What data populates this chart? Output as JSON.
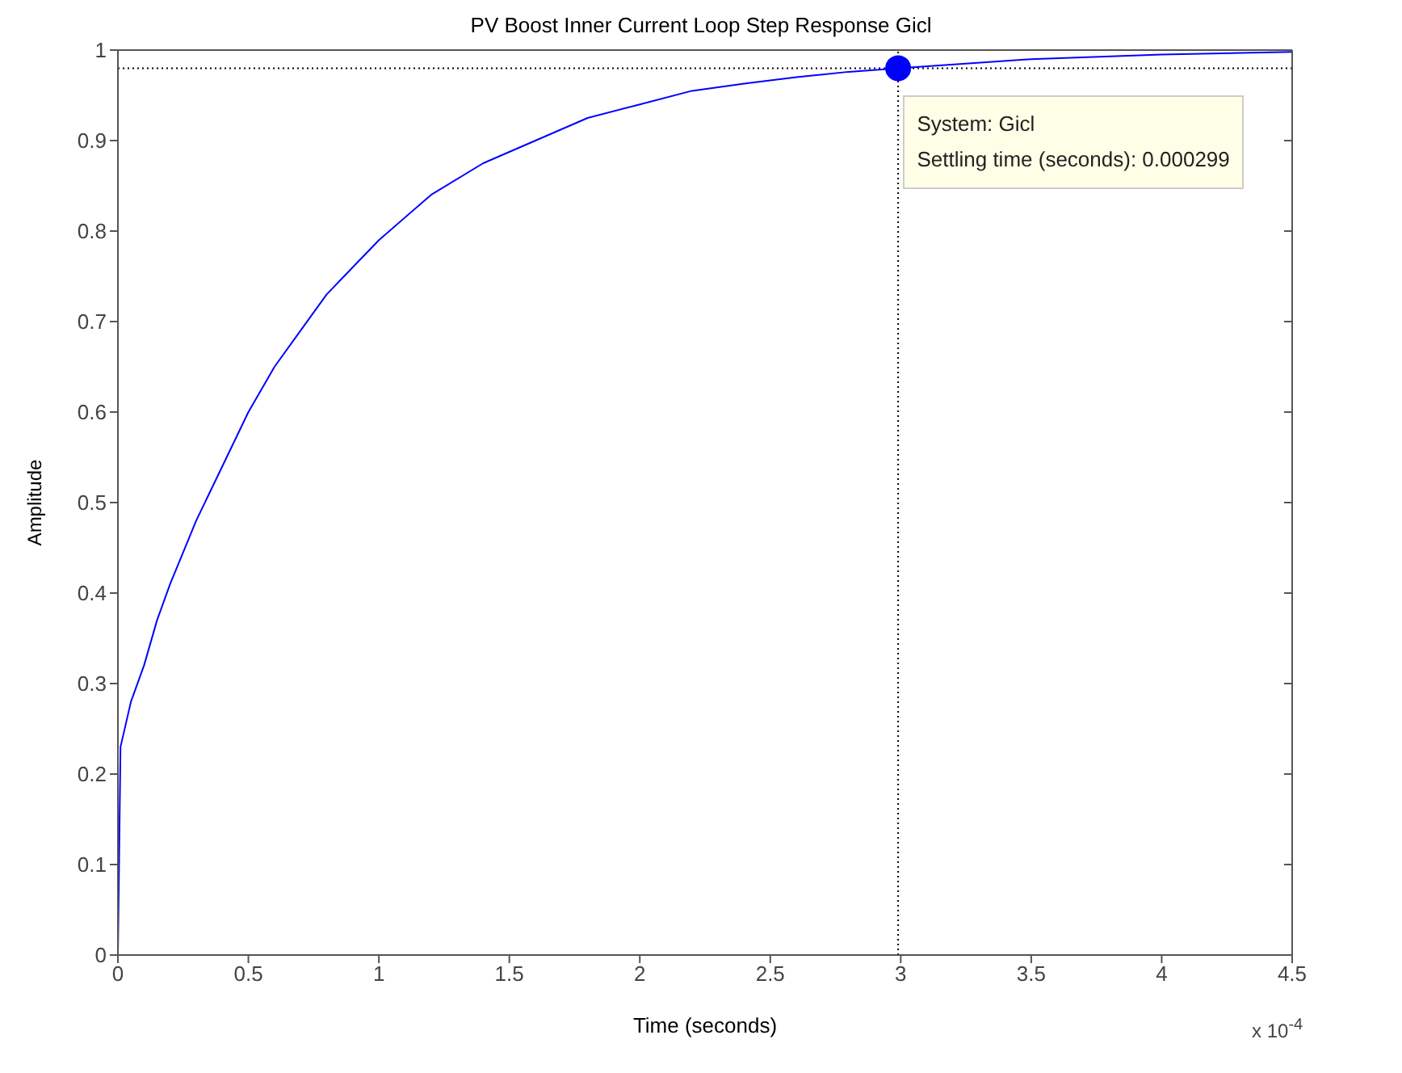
{
  "chart_data": {
    "type": "line",
    "title": "PV Boost Inner Current Loop Step Response Gicl",
    "xlabel": "Time (seconds)",
    "ylabel": "Amplitude",
    "xlim": [
      0,
      4.5
    ],
    "xticks": [
      0,
      0.5,
      1,
      1.5,
      2,
      2.5,
      3,
      3.5,
      4,
      4.5
    ],
    "ylim": [
      0,
      1
    ],
    "yticks": [
      0,
      0.1,
      0.2,
      0.3,
      0.4,
      0.5,
      0.6,
      0.7,
      0.8,
      0.9,
      1
    ],
    "line_style": "solid",
    "series": [
      {
        "color": "#0000ff",
        "marker": "none",
        "x": [
          0,
          0.01,
          0.05,
          0.1,
          0.15,
          0.2,
          0.3,
          0.4,
          0.5,
          0.6,
          0.7,
          0.8,
          0.9,
          1.0,
          1.2,
          1.4,
          1.6,
          1.8,
          2.0,
          2.2,
          2.4,
          2.6,
          2.8,
          2.99,
          3.5,
          4.0,
          4.5
        ],
        "values": [
          0,
          0.23,
          0.28,
          0.32,
          0.37,
          0.41,
          0.48,
          0.54,
          0.6,
          0.65,
          0.69,
          0.73,
          0.76,
          0.79,
          0.84,
          0.875,
          0.9,
          0.925,
          0.94,
          0.955,
          0.963,
          0.97,
          0.976,
          0.98,
          0.99,
          0.995,
          0.998
        ]
      },
      {
        "type": "scatter",
        "color": "#0000ff",
        "marker": "circle",
        "x": [
          2.99
        ],
        "values": [
          0.98
        ]
      }
    ],
    "ref_lines": [
      {
        "axis": "y",
        "value": 0.98,
        "color": "#000000",
        "line_style": "dotted"
      },
      {
        "axis": "x",
        "value": 2.99,
        "color": "#000000",
        "line_style": "dotted"
      }
    ],
    "annotations": [
      {
        "text": "System: Gicl",
        "x": 2.99,
        "y": 0.98
      },
      "Settling time (seconds): 0.000299",
      "x 10$^{-4}$"
    ]
  }
}
